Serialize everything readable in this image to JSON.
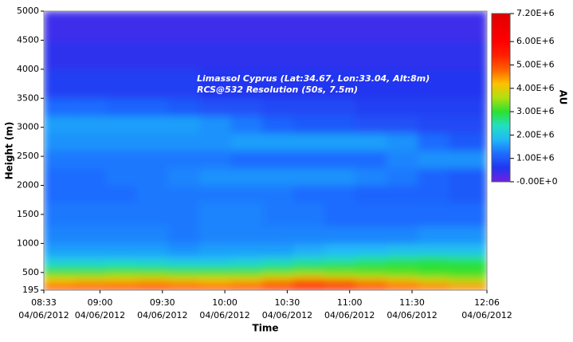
{
  "chart_data": {
    "type": "heatmap",
    "annotation": [
      "Limassol Cyprus (Lat:34.67, Lon:33.04, Alt:8m)",
      "RCS@532 Resolution (50s, 7.5m)"
    ],
    "xlabel": "Time",
    "ylabel": "Height (m)",
    "colorbar_label": "AU",
    "xlim": [
      513,
      726
    ],
    "xticks": [
      {
        "value": 513,
        "label": "08:33",
        "date": "04/06/2012"
      },
      {
        "value": 540,
        "label": "09:00",
        "date": "04/06/2012"
      },
      {
        "value": 570,
        "label": "09:30",
        "date": "04/06/2012"
      },
      {
        "value": 600,
        "label": "10:00",
        "date": "04/06/2012"
      },
      {
        "value": 630,
        "label": "10:30",
        "date": "04/06/2012"
      },
      {
        "value": 660,
        "label": "11:00",
        "date": "04/06/2012"
      },
      {
        "value": 690,
        "label": "11:30",
        "date": "04/06/2012"
      },
      {
        "value": 726,
        "label": "12:06",
        "date": "04/06/2012"
      }
    ],
    "ylim": [
      195,
      5000
    ],
    "yticks": [
      195,
      500,
      1000,
      1500,
      2000,
      2500,
      3000,
      3500,
      4000,
      4500,
      5000
    ],
    "zlim": [
      0,
      7200000
    ],
    "zticks": [
      {
        "value": 0,
        "label": "-0.00E+0"
      },
      {
        "value": 1000000,
        "label": "1.00E+6"
      },
      {
        "value": 2000000,
        "label": "2.00E+6"
      },
      {
        "value": 3000000,
        "label": "3.00E+6"
      },
      {
        "value": 4000000,
        "label": "4.00E+6"
      },
      {
        "value": 5000000,
        "label": "5.00E+6"
      },
      {
        "value": 6000000,
        "label": "6.00E+6"
      },
      {
        "value": 7200000,
        "label": "7.20E+6"
      }
    ],
    "colors": [
      "#7020e0",
      "#2236f0",
      "#1d6cff",
      "#20b8f8",
      "#22e0c0",
      "#2ce030",
      "#b0e010",
      "#ffc000",
      "#ff6000",
      "#ff2000",
      "#ff0000",
      "#f00000",
      "#e00000"
    ],
    "x_edges": [
      513,
      528,
      543,
      558,
      573,
      588,
      603,
      618,
      633,
      648,
      663,
      678,
      693,
      708,
      726
    ],
    "y_edges": [
      195,
      300,
      400,
      500,
      600,
      700,
      800,
      1000,
      1300,
      1700,
      2000,
      2300,
      2600,
      2900,
      3200,
      3500,
      4000,
      4500,
      5000
    ],
    "z": [
      [
        5200000.0,
        5200000.0,
        5300000.0,
        5300000.0,
        5200000.0,
        5200000.0,
        5300000.0,
        5400000.0,
        5600000.0,
        5500000.0,
        5300000.0,
        5000000.0,
        4800000.0,
        4600000.0
      ],
      [
        4200000.0,
        4300000.0,
        4300000.0,
        4400000.0,
        4300000.0,
        4200000.0,
        4300000.0,
        4600000.0,
        5000000.0,
        4800000.0,
        4500000.0,
        4300000.0,
        4000000.0,
        3800000.0
      ],
      [
        3400000.0,
        3400000.0,
        3500000.0,
        3500000.0,
        3400000.0,
        3400000.0,
        3400000.0,
        3600000.0,
        3800000.0,
        3600000.0,
        3500000.0,
        3400000.0,
        3300000.0,
        3200000.0
      ],
      [
        2900000.0,
        2900000.0,
        3000000.0,
        3000000.0,
        2900000.0,
        2900000.0,
        2900000.0,
        3000000.0,
        3100000.0,
        3100000.0,
        3100000.0,
        3100000.0,
        3000000.0,
        3000000.0
      ],
      [
        2300000.0,
        2300000.0,
        2400000.0,
        2300000.0,
        2200000.0,
        2200000.0,
        2300000.0,
        2500000.0,
        2700000.0,
        2800000.0,
        2900000.0,
        3000000.0,
        3000000.0,
        3000000.0
      ],
      [
        1900000.0,
        1900000.0,
        1900000.0,
        1900000.0,
        1800000.0,
        1800000.0,
        1900000.0,
        2000000.0,
        2200000.0,
        2300000.0,
        2500000.0,
        2600000.0,
        2700000.0,
        2600000.0
      ],
      [
        1600000.0,
        1600000.0,
        1600000.0,
        1600000.0,
        1500000.0,
        1600000.0,
        1600000.0,
        1600000.0,
        1700000.0,
        1800000.0,
        1800000.0,
        1900000.0,
        1900000.0,
        1900000.0
      ],
      [
        1400000.0,
        1400000.0,
        1400000.0,
        1400000.0,
        1300000.0,
        1400000.0,
        1400000.0,
        1400000.0,
        1400000.0,
        1400000.0,
        1400000.0,
        1400000.0,
        1500000.0,
        1500000.0
      ],
      [
        1300000.0,
        1300000.0,
        1300000.0,
        1300000.0,
        1300000.0,
        1400000.0,
        1400000.0,
        1300000.0,
        1300000.0,
        1200000.0,
        1200000.0,
        1200000.0,
        1200000.0,
        1200000.0
      ],
      [
        1200000.0,
        1200000.0,
        1200000.0,
        1300000.0,
        1300000.0,
        1300000.0,
        1300000.0,
        1300000.0,
        1200000.0,
        1200000.0,
        1100000.0,
        1100000.0,
        1100000.0,
        1000000.0
      ],
      [
        1200000.0,
        1200000.0,
        1300000.0,
        1300000.0,
        1400000.0,
        1500000.0,
        1500000.0,
        1500000.0,
        1500000.0,
        1500000.0,
        1400000.0,
        1300000.0,
        1100000.0,
        1000000.0
      ],
      [
        1300000.0,
        1300000.0,
        1300000.0,
        1300000.0,
        1300000.0,
        1300000.0,
        1200000.0,
        1200000.0,
        1200000.0,
        1200000.0,
        1200000.0,
        1400000.0,
        1500000.0,
        1500000.0
      ],
      [
        1500000.0,
        1500000.0,
        1500000.0,
        1500000.0,
        1500000.0,
        1500000.0,
        1600000.0,
        1600000.0,
        1600000.0,
        1600000.0,
        1600000.0,
        1500000.0,
        1200000.0,
        1000000.0
      ],
      [
        1600000.0,
        1600000.0,
        1600000.0,
        1600000.0,
        1600000.0,
        1500000.0,
        1300000.0,
        1100000.0,
        1000000.0,
        1000000.0,
        900000.0,
        900000.0,
        800000.0,
        800000.0
      ],
      [
        1200000.0,
        1200000.0,
        1100000.0,
        1100000.0,
        1000000.0,
        900000.0,
        900000.0,
        800000.0,
        800000.0,
        800000.0,
        700000.0,
        700000.0,
        700000.0,
        700000.0
      ],
      [
        700000.0,
        700000.0,
        700000.0,
        700000.0,
        700000.0,
        600000.0,
        600000.0,
        600000.0,
        600000.0,
        600000.0,
        600000.0,
        600000.0,
        600000.0,
        600000.0
      ],
      [
        500000.0,
        500000.0,
        500000.0,
        500000.0,
        500000.0,
        500000.0,
        500000.0,
        500000.0,
        500000.0,
        500000.0,
        500000.0,
        500000.0,
        500000.0,
        500000.0
      ],
      [
        400000.0,
        400000.0,
        400000.0,
        400000.0,
        400000.0,
        400000.0,
        400000.0,
        400000.0,
        400000.0,
        400000.0,
        400000.0,
        400000.0,
        400000.0,
        400000.0
      ]
    ]
  }
}
